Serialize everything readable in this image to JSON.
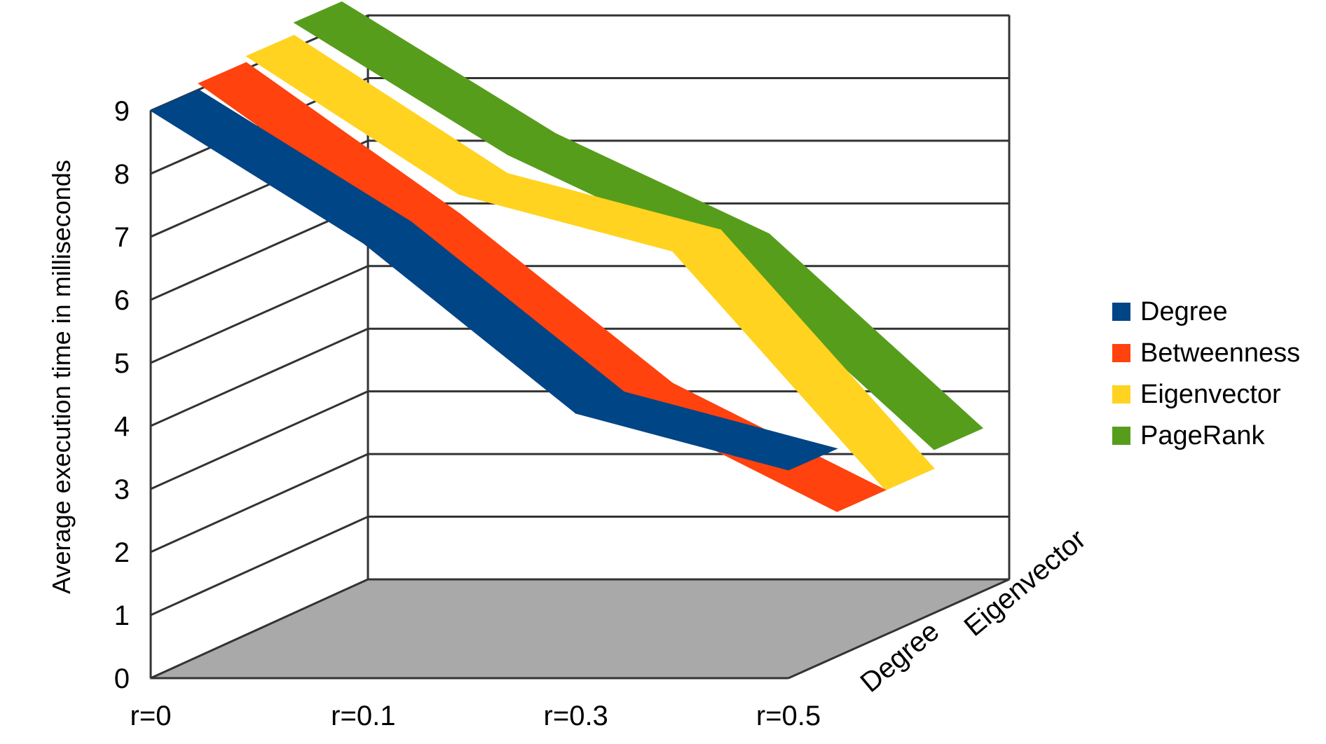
{
  "chart_data": {
    "type": "area",
    "ylabel": "Average execution time in milliseconds",
    "xlabel": "",
    "ylim": [
      0,
      9
    ],
    "y_ticks": [
      0,
      1,
      2,
      3,
      4,
      5,
      6,
      7,
      8,
      9
    ],
    "categories": [
      "r=0",
      "r=0.1",
      "r=0.3",
      "r=0.5"
    ],
    "depth_labels": [
      "Degree",
      "Eigenvector"
    ],
    "grid": true,
    "legend_position": "right",
    "series": [
      {
        "name": "Degree",
        "color": "#004586",
        "values": [
          9.0,
          6.9,
          4.2,
          3.3
        ]
      },
      {
        "name": "Betweenness",
        "color": "#ff420e",
        "values": [
          9.1,
          6.7,
          4.0,
          2.3
        ]
      },
      {
        "name": "Eigenvector",
        "color": "#ffd320",
        "values": [
          9.2,
          7.0,
          6.1,
          2.3
        ]
      },
      {
        "name": "PageRank",
        "color": "#579d1c",
        "values": [
          9.4,
          7.3,
          5.7,
          2.6
        ]
      }
    ]
  }
}
